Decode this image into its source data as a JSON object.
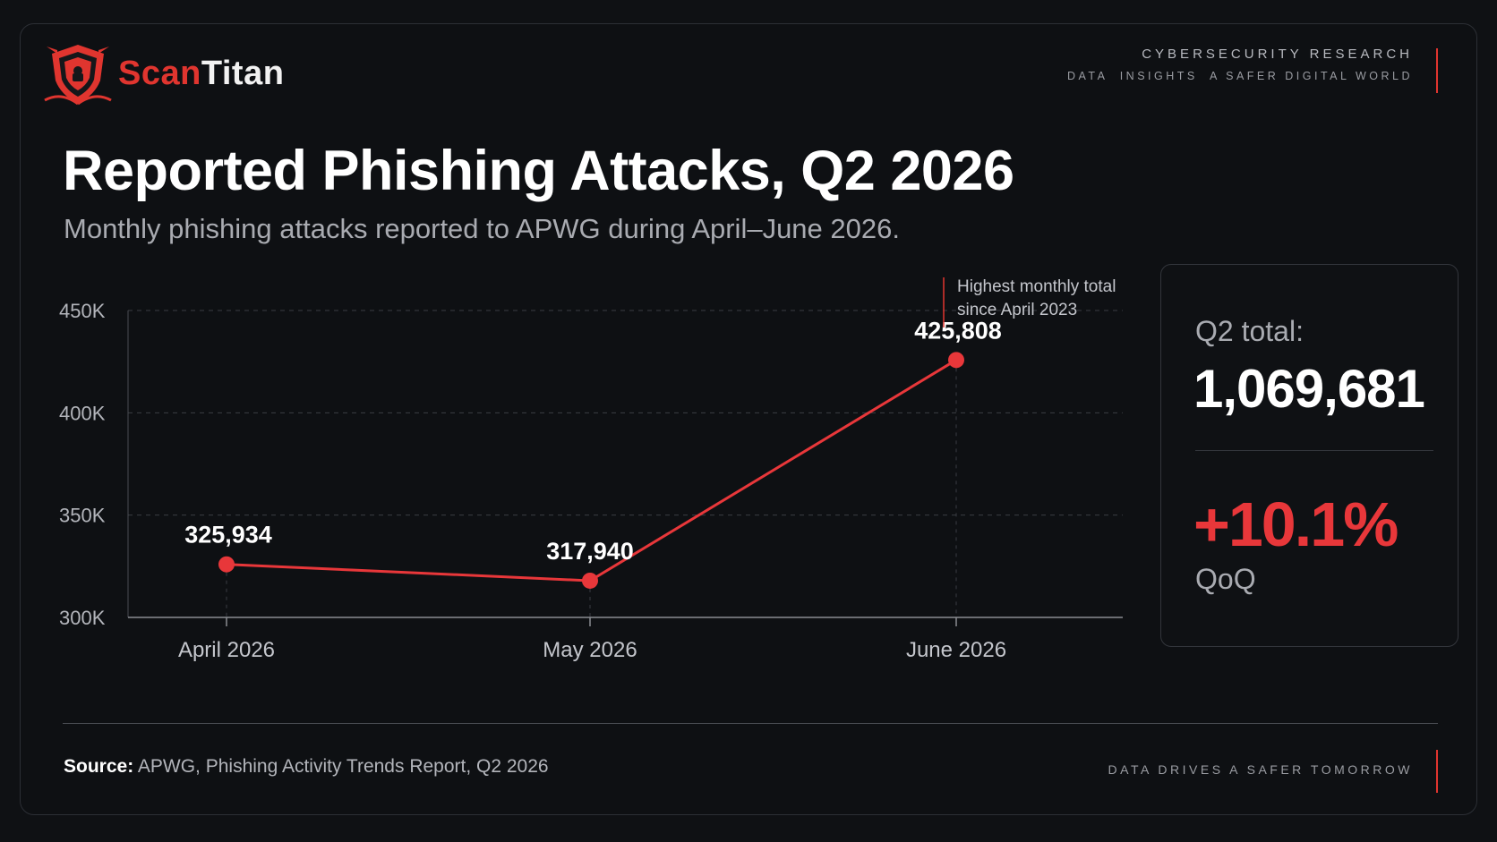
{
  "brand": {
    "name_part1": "Scan",
    "name_part2": "Titan",
    "colors": {
      "accent": "#e0352f",
      "line": "#e8373a",
      "background": "#0f1114",
      "text": "#ffffff",
      "muted": "#a9abb1"
    }
  },
  "header": {
    "line1": "CYBERSECURITY RESEARCH",
    "line2": "DATA  INSIGHTS  A SAFER DIGITAL WORLD"
  },
  "chart_data": {
    "type": "line",
    "title": "Reported Phishing Attacks, Q2 2026",
    "subtitle": "Monthly phishing attacks reported to APWG during April–June 2026.",
    "categories": [
      "April 2026",
      "May 2026",
      "June 2026"
    ],
    "values": [
      325934,
      317940,
      425808
    ],
    "value_labels": [
      "325,934",
      "317,940",
      "425,808"
    ],
    "y_ticks": [
      300000,
      350000,
      400000,
      450000
    ],
    "y_tick_labels": [
      "300K",
      "350K",
      "400K",
      "450K"
    ],
    "ylim": [
      300000,
      450000
    ],
    "grid": "dashed horizontal",
    "annotation": {
      "category": "June 2026",
      "lines": [
        "Highest monthly total",
        "since April 2023"
      ]
    }
  },
  "kpi": {
    "total_label": "Q2 total:",
    "total_value": "1,069,681",
    "change_value": "+10.1%",
    "change_label": "QoQ"
  },
  "footer": {
    "source_label": "Source:",
    "source_text": "APWG, Phishing Activity Trends Report, Q2 2026",
    "tagline": "DATA DRIVES A SAFER TOMORROW"
  }
}
